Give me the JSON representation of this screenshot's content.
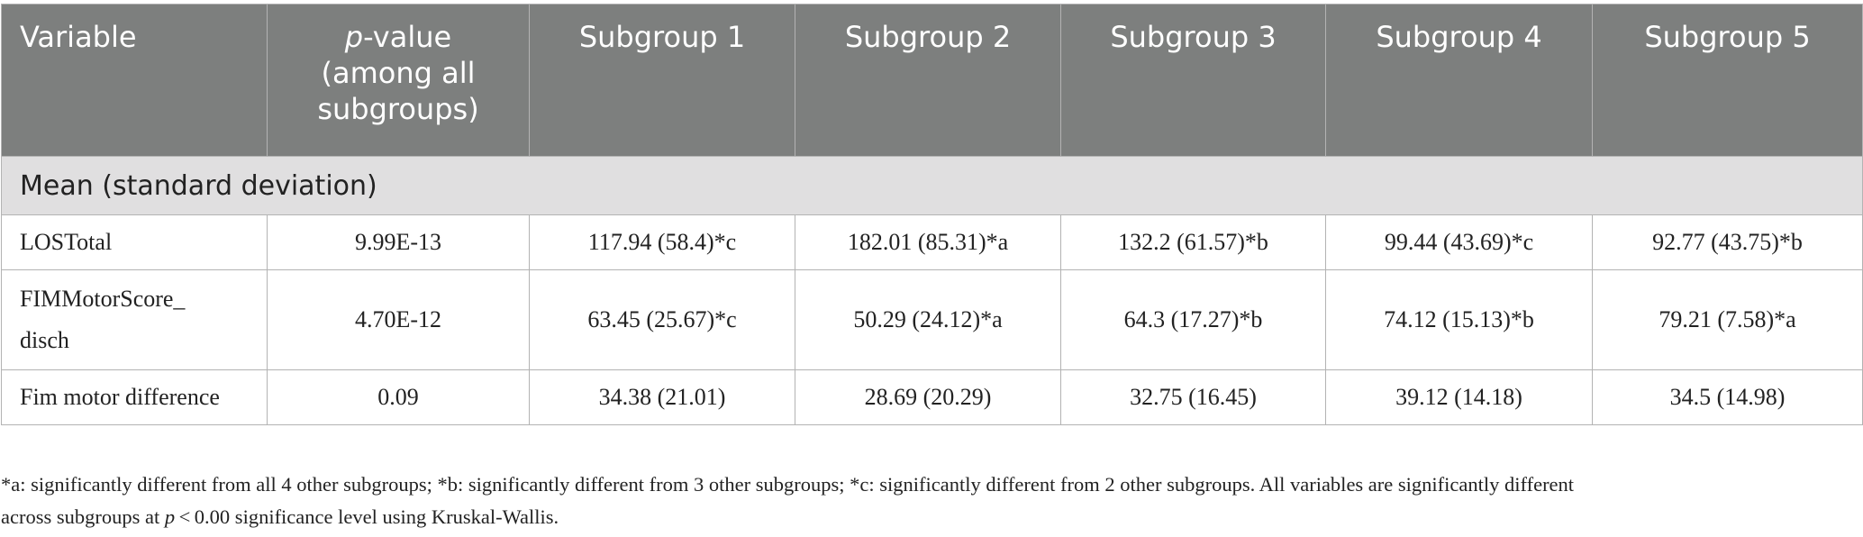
{
  "table": {
    "headers": {
      "variable": "Variable",
      "pvalue_italic": "p",
      "pvalue_rest": "-value",
      "pvalue_line2": "(among all",
      "pvalue_line3": "subgroups)",
      "subgroups": [
        "Subgroup 1",
        "Subgroup 2",
        "Subgroup 3",
        "Subgroup 4",
        "Subgroup 5"
      ]
    },
    "section_label": "Mean (standard deviation)",
    "rows": [
      {
        "variable": "LOSTotal",
        "pvalue": "9.99E-13",
        "values": [
          "117.94 (58.4)*c",
          "182.01 (85.31)*a",
          "132.2 (61.57)*b",
          "99.44 (43.69)*c",
          "92.77 (43.75)*b"
        ]
      },
      {
        "variable_line1": "FIMMotorScore_",
        "variable_line2": "disch",
        "pvalue": "4.70E-12",
        "values": [
          "63.45 (25.67)*c",
          "50.29 (24.12)*a",
          "64.3 (17.27)*b",
          "74.12 (15.13)*b",
          "79.21 (7.58)*a"
        ]
      },
      {
        "variable": "Fim motor difference",
        "pvalue": "0.09",
        "values": [
          "34.38 (21.01)",
          "28.69 (20.29)",
          "32.75 (16.45)",
          "39.12 (14.18)",
          "34.5 (14.98)"
        ]
      }
    ]
  },
  "footnote": {
    "line1": "*a: significantly different from all 4 other subgroups; *b: significantly different from 3 other subgroups; *c: significantly different from 2 other subgroups. All variables are significantly different",
    "line2_before": "across subgroups at ",
    "line2_italic": "p",
    "line2_after": " < 0.00 significance level using Kruskal-Wallis."
  }
}
